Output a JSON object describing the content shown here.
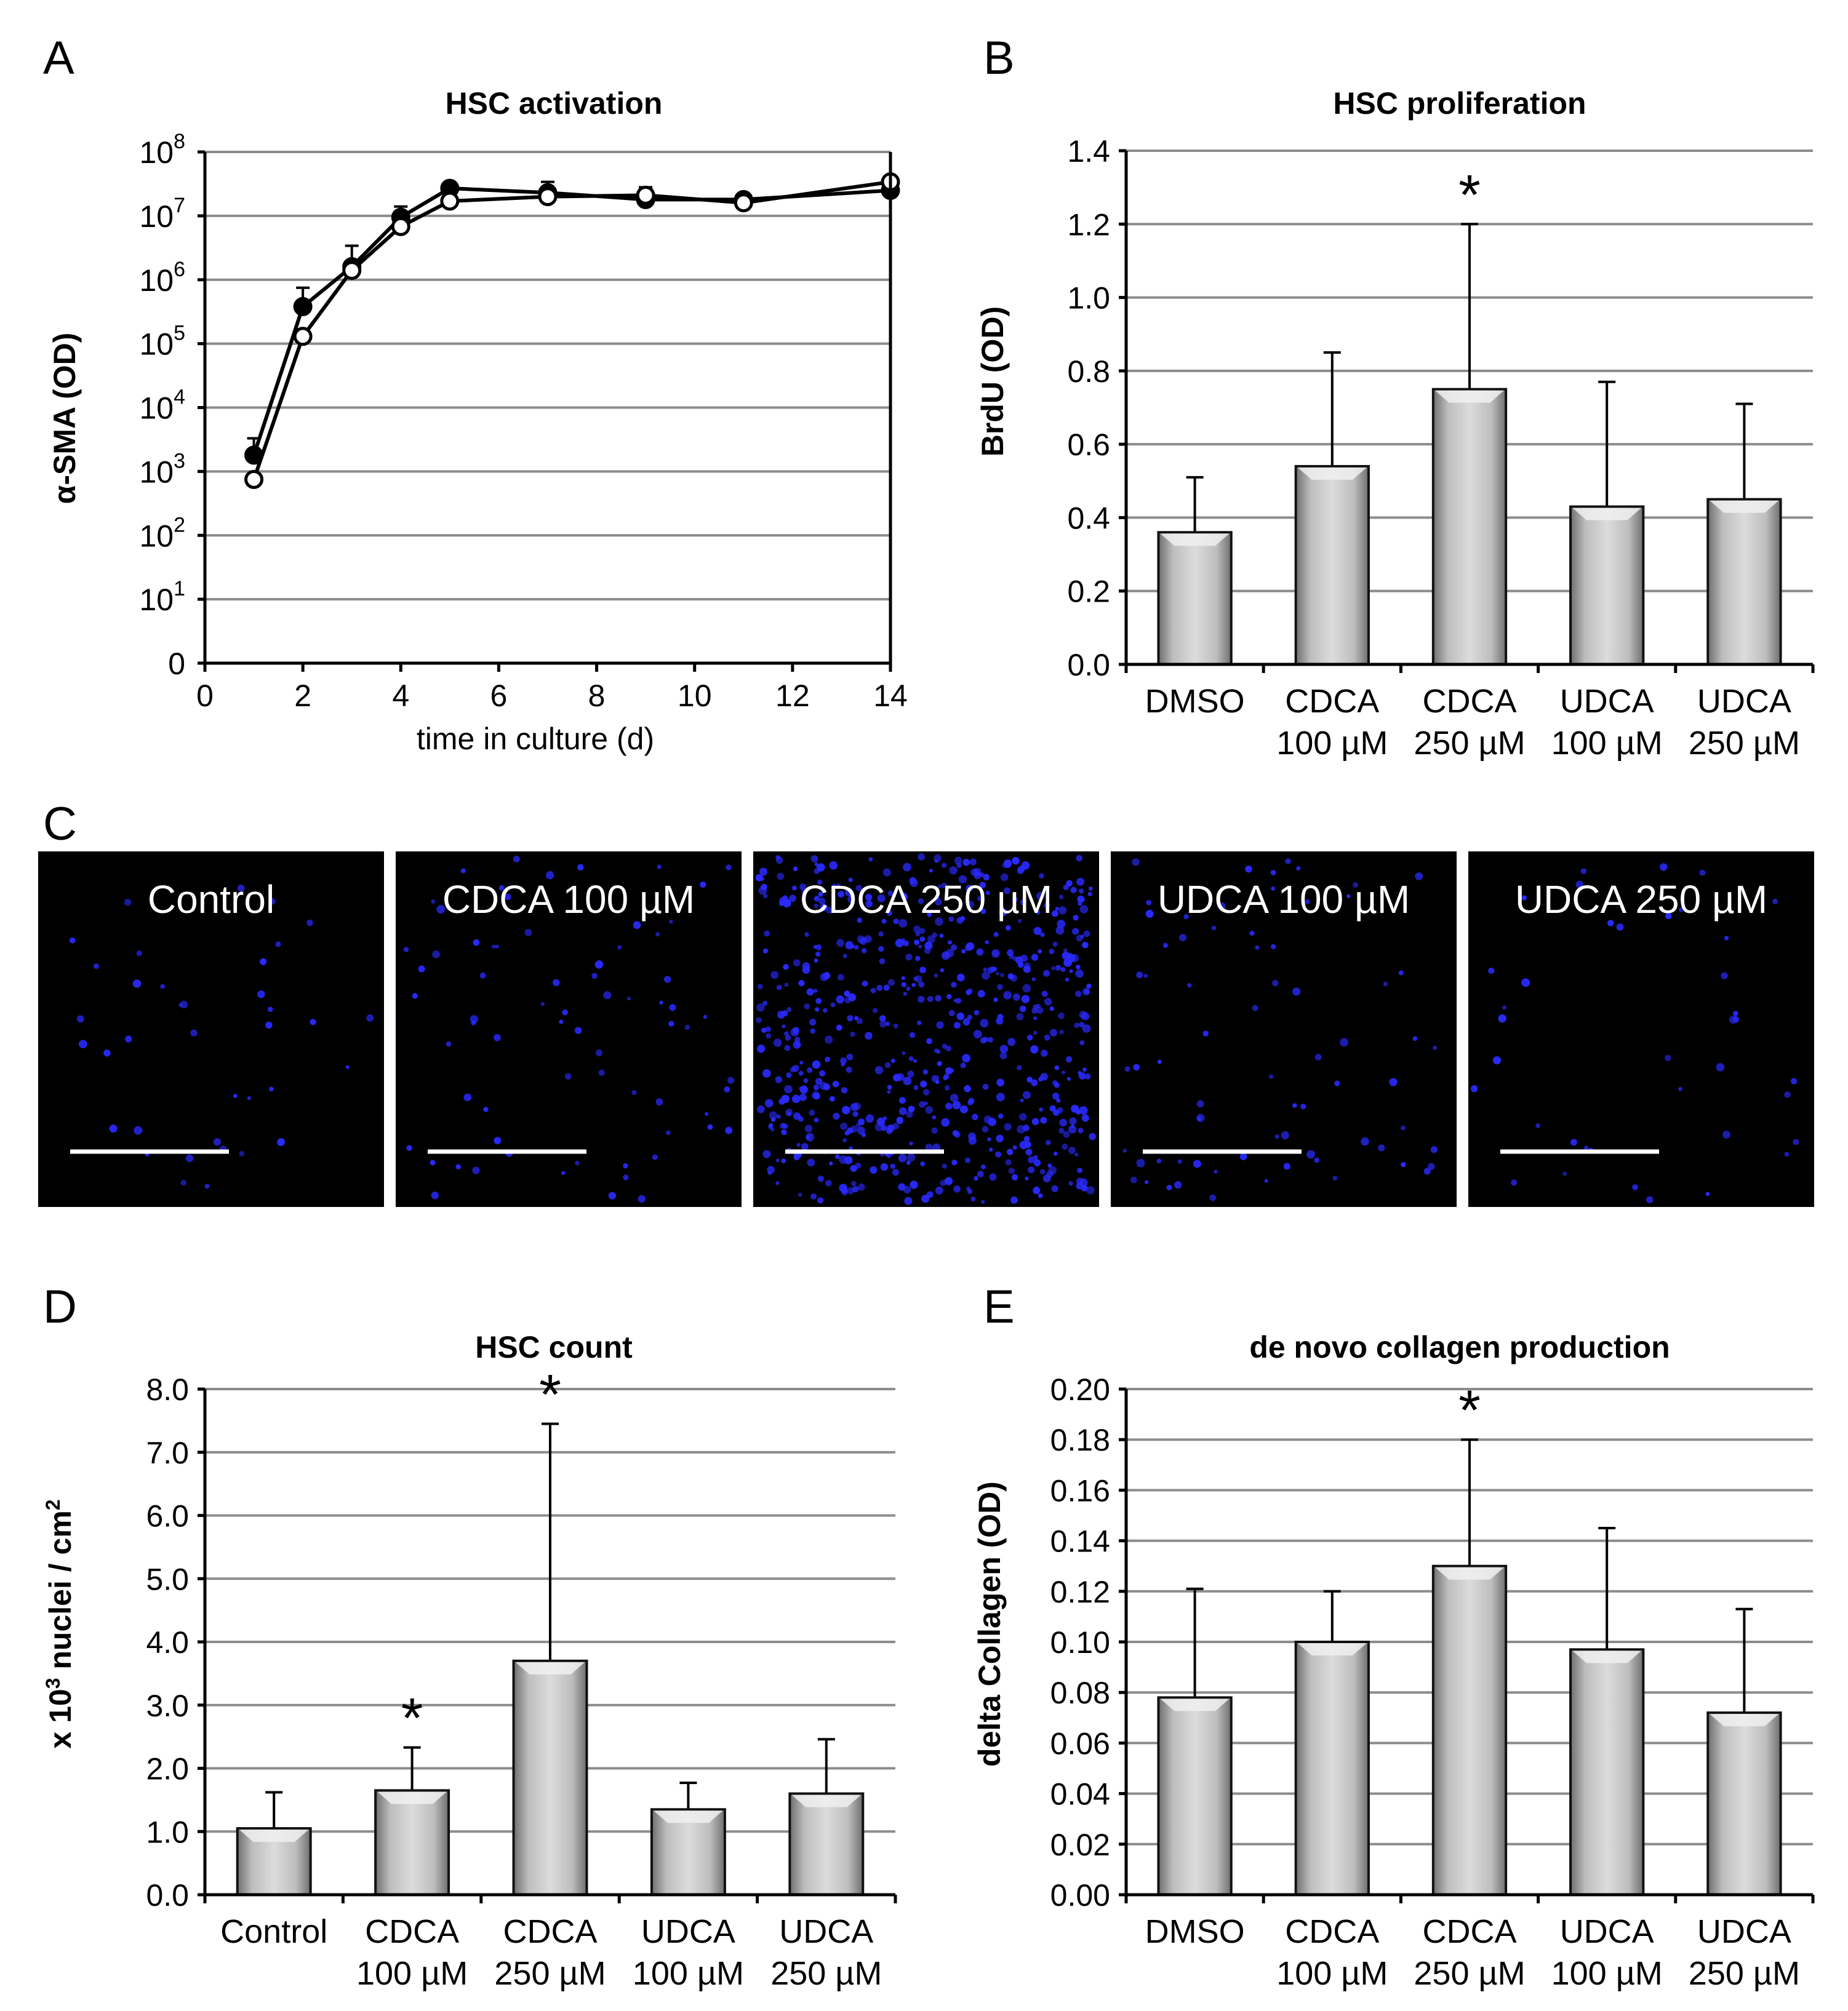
{
  "panels": {
    "A": {
      "letter": "A"
    },
    "B": {
      "letter": "B"
    },
    "C": {
      "letter": "C",
      "micrographs": [
        {
          "label": "Control",
          "nuclei_density": "sparse"
        },
        {
          "label": "CDCA 100 µM",
          "nuclei_density": "moderate"
        },
        {
          "label": "CDCA 250 µM",
          "nuclei_density": "dense"
        },
        {
          "label": "UDCA 100 µM",
          "nuclei_density": "moderate"
        },
        {
          "label": "UDCA 250 µM",
          "nuclei_density": "sparse"
        }
      ],
      "nuclei_color": "#2a2aff",
      "background_color": "#000000",
      "scale_bar_color": "#ffffff"
    },
    "D": {
      "letter": "D"
    },
    "E": {
      "letter": "E"
    }
  },
  "chart_data": [
    {
      "type": "line",
      "title": "HSC activation",
      "xlabel": "time in culture (d)",
      "ylabel": "α-SMA (OD)",
      "yscale": "log",
      "xlim": [
        0,
        14
      ],
      "ylim": [
        1,
        100000000
      ],
      "x_ticks": [
        "0",
        "2",
        "4",
        "6",
        "8",
        "10",
        "12",
        "14"
      ],
      "y_ticks": [
        {
          "base": "0",
          "exp": ""
        },
        {
          "base": "10",
          "exp": "1"
        },
        {
          "base": "10",
          "exp": "2"
        },
        {
          "base": "10",
          "exp": "3"
        },
        {
          "base": "10",
          "exp": "4"
        },
        {
          "base": "10",
          "exp": "5"
        },
        {
          "base": "10",
          "exp": "6"
        },
        {
          "base": "10",
          "exp": "7"
        },
        {
          "base": "10",
          "exp": "8"
        }
      ],
      "series": [
        {
          "name": "filled circles",
          "marker": "filled",
          "x": [
            1,
            2,
            3,
            4,
            5,
            7,
            9,
            11,
            14
          ],
          "y": [
            1800,
            380000,
            1600000,
            9500000,
            27000000,
            23000000,
            18000000,
            18000000,
            25000000
          ],
          "err_upper": [
            3300,
            750000,
            3400000,
            14000000,
            28000000,
            34000000,
            28000000,
            22000000,
            30000000
          ]
        },
        {
          "name": "open circles",
          "marker": "open",
          "x": [
            1,
            2,
            3,
            4,
            5,
            7,
            9,
            11,
            14
          ],
          "y": [
            750,
            130000,
            1400000,
            6800000,
            17000000,
            20000000,
            21000000,
            16000000,
            34000000
          ],
          "err_upper": [
            null,
            null,
            null,
            null,
            null,
            null,
            null,
            null,
            40000000
          ]
        }
      ]
    },
    {
      "type": "bar",
      "title": "HSC proliferation",
      "ylabel": "BrdU (OD)",
      "categories": [
        [
          "DMSO"
        ],
        [
          "CDCA",
          "100 µM"
        ],
        [
          "CDCA",
          "250 µM"
        ],
        [
          "UDCA",
          "100 µM"
        ],
        [
          "UDCA",
          "250 µM"
        ]
      ],
      "values": [
        0.36,
        0.54,
        0.75,
        0.43,
        0.45
      ],
      "err_upper": [
        0.51,
        0.85,
        1.2,
        0.77,
        0.71
      ],
      "significant": [
        false,
        false,
        true,
        false,
        false
      ],
      "significance_marker": "*",
      "ylim": [
        0,
        1.4
      ],
      "y_ticks": [
        "0.0",
        "0.2",
        "0.4",
        "0.6",
        "0.8",
        "1.0",
        "1.2",
        "1.4"
      ]
    },
    {
      "type": "bar",
      "title": "HSC count",
      "ylabel": "x 10³ nuclei / cm²",
      "ylabel_parts": {
        "prefix": "x 10",
        "exp1": "3",
        "middle": " nuclei / cm",
        "exp2": "2"
      },
      "categories": [
        [
          "Control"
        ],
        [
          "CDCA",
          "100 µM"
        ],
        [
          "CDCA",
          "250 µM"
        ],
        [
          "UDCA",
          "100 µM"
        ],
        [
          "UDCA",
          "250 µM"
        ]
      ],
      "values": [
        1.05,
        1.65,
        3.7,
        1.35,
        1.6
      ],
      "err_upper": [
        1.62,
        2.33,
        7.45,
        1.77,
        2.46
      ],
      "significant": [
        false,
        true,
        true,
        false,
        false
      ],
      "significance_marker": "*",
      "ylim": [
        0,
        8.0
      ],
      "y_ticks": [
        "0.0",
        "1.0",
        "2.0",
        "3.0",
        "4.0",
        "5.0",
        "6.0",
        "7.0",
        "8.0"
      ]
    },
    {
      "type": "bar",
      "title": "de novo collagen production",
      "ylabel": "delta Collagen (OD)",
      "categories": [
        [
          "DMSO"
        ],
        [
          "CDCA",
          "100 µM"
        ],
        [
          "CDCA",
          "250 µM"
        ],
        [
          "UDCA",
          "100 µM"
        ],
        [
          "UDCA",
          "250 µM"
        ]
      ],
      "values": [
        0.078,
        0.1,
        0.13,
        0.097,
        0.072
      ],
      "err_upper": [
        0.121,
        0.12,
        0.18,
        0.145,
        0.113
      ],
      "significant": [
        false,
        false,
        true,
        false,
        false
      ],
      "significance_marker": "*",
      "ylim": [
        0,
        0.2
      ],
      "y_ticks": [
        "0.00",
        "0.02",
        "0.04",
        "0.06",
        "0.08",
        "0.10",
        "0.12",
        "0.14",
        "0.16",
        "0.18",
        "0.20"
      ]
    }
  ]
}
